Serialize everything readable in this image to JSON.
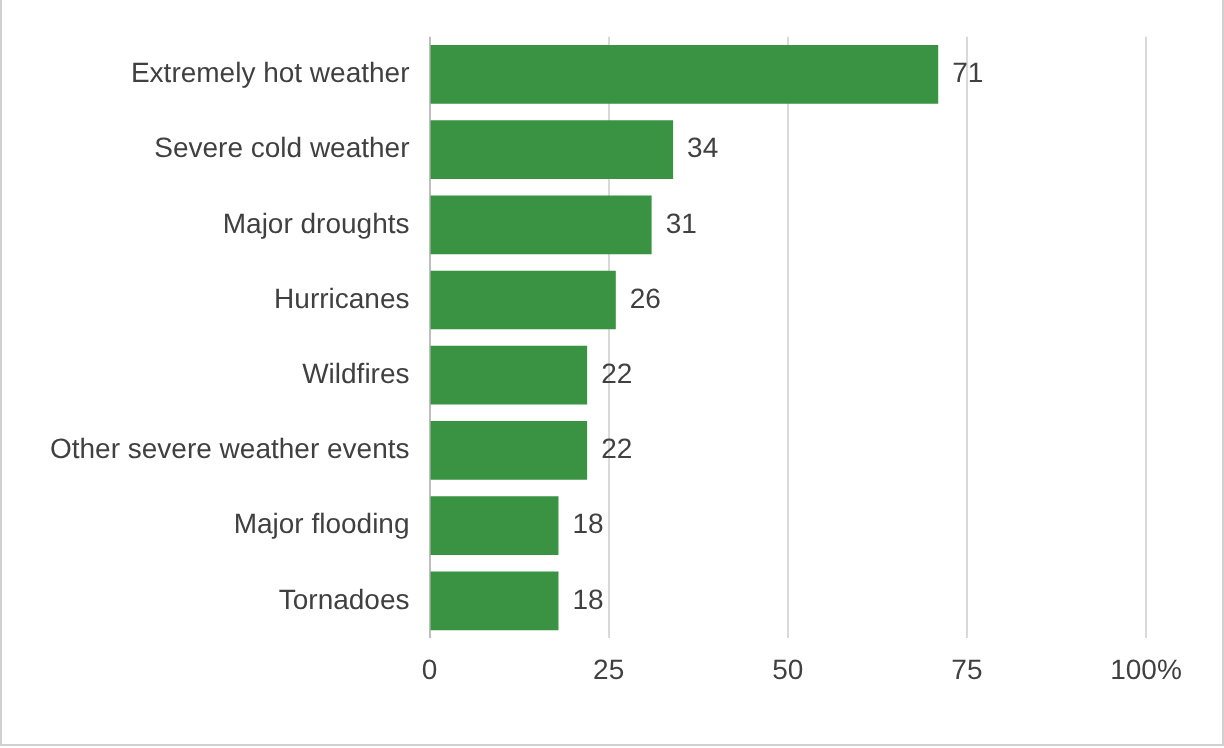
{
  "chart_data": {
    "type": "bar",
    "orientation": "horizontal",
    "categories": [
      "Extremely hot weather",
      "Severe cold weather",
      "Major droughts",
      "Hurricanes",
      "Wildfires",
      "Other severe weather events",
      "Major flooding",
      "Tornadoes"
    ],
    "values": [
      71,
      34,
      31,
      26,
      22,
      22,
      18,
      18
    ],
    "color": "#3a9343",
    "xlim": [
      0,
      100
    ],
    "xticks": [
      0,
      25,
      50,
      75,
      {
        "value": 100,
        "label": "100%"
      }
    ],
    "grid": "x",
    "data_labels": true
  }
}
